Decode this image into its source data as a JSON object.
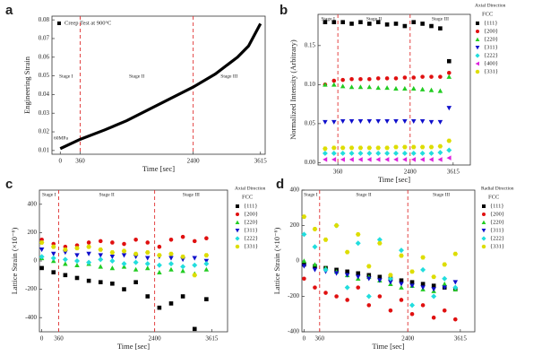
{
  "chart_data": [
    {
      "panel": "a",
      "type": "line",
      "x_label": "Time [sec]",
      "y_label": "Engineering Strain",
      "xlim": [
        -150,
        3700
      ],
      "ylim": [
        0.008,
        0.082
      ],
      "xticks": [
        0,
        360,
        2400,
        3615
      ],
      "yticks": [
        0.01,
        0.02,
        0.03,
        0.04,
        0.05,
        0.06,
        0.07,
        0.08
      ],
      "vlines": [
        360,
        2400
      ],
      "stage_labels": [
        "Stage I",
        "Stage II",
        "Stage III"
      ],
      "stage_label_position": "middle",
      "annotation": "60MPa",
      "legend": "inside",
      "x": [
        0,
        360,
        800,
        1200,
        1600,
        2000,
        2400,
        2800,
        3200,
        3400,
        3615
      ],
      "series": [
        {
          "name": "Creep Test at 900°C",
          "color": "#000000",
          "marker": "square",
          "values": [
            0.011,
            0.016,
            0.021,
            0.026,
            0.032,
            0.038,
            0.044,
            0.051,
            0.06,
            0.066,
            0.078
          ]
        }
      ]
    },
    {
      "panel": "b",
      "type": "scatter",
      "x_label": "Time [sec]",
      "y_label": "Normalized Intensity (Arbitrary)",
      "xlim": [
        -200,
        4100
      ],
      "ylim": [
        -0.003,
        0.19
      ],
      "xticks": [
        360,
        2400,
        3615
      ],
      "yticks": [
        {
          "value": 0,
          "label": "0.00"
        },
        0.05,
        {
          "value": 0.1,
          "label": "0.10"
        },
        0.15
      ],
      "vlines": [
        360,
        2400
      ],
      "stage_labels": [
        "Stage I",
        "Stage II",
        "Stage III"
      ],
      "stage_label_position": "top",
      "legend": "outside",
      "legend_title": "Axial Direction",
      "legend_subtitle": "FCC",
      "x": [
        0,
        250,
        500,
        750,
        1000,
        1250,
        1500,
        1750,
        2000,
        2250,
        2500,
        2750,
        3000,
        3250,
        3500
      ],
      "series": [
        {
          "name": "{111}",
          "color": "#000000",
          "marker": "square",
          "values": [
            0.18,
            0.18,
            0.18,
            0.178,
            0.18,
            0.178,
            0.18,
            0.177,
            0.178,
            0.175,
            0.18,
            0.178,
            0.175,
            0.172,
            0.13
          ]
        },
        {
          "name": "{200}",
          "color": "#e01010",
          "marker": "circle",
          "values": [
            0.1,
            0.105,
            0.106,
            0.107,
            0.107,
            0.107,
            0.108,
            0.108,
            0.108,
            0.109,
            0.109,
            0.11,
            0.11,
            0.11,
            0.115
          ]
        },
        {
          "name": "{220}",
          "color": "#22cc22",
          "marker": "triangle-up",
          "values": [
            0.1,
            0.1,
            0.098,
            0.097,
            0.097,
            0.097,
            0.096,
            0.096,
            0.095,
            0.095,
            0.095,
            0.094,
            0.093,
            0.092,
            0.11
          ]
        },
        {
          "name": "{311}",
          "color": "#1010cc",
          "marker": "triangle-down",
          "values": [
            0.052,
            0.052,
            0.053,
            0.053,
            0.053,
            0.053,
            0.053,
            0.053,
            0.053,
            0.053,
            0.053,
            0.053,
            0.052,
            0.052,
            0.07
          ]
        },
        {
          "name": "{222}",
          "color": "#22dddd",
          "marker": "diamond",
          "values": [
            0.012,
            0.012,
            0.012,
            0.012,
            0.012,
            0.012,
            0.012,
            0.012,
            0.012,
            0.012,
            0.012,
            0.012,
            0.012,
            0.013,
            0.016
          ]
        },
        {
          "name": "{400}",
          "color": "#dd22dd",
          "marker": "triangle-left",
          "values": [
            0.004,
            0.004,
            0.004,
            0.004,
            0.004,
            0.004,
            0.004,
            0.004,
            0.004,
            0.004,
            0.004,
            0.004,
            0.004,
            0.004,
            0.006
          ]
        },
        {
          "name": "{331}",
          "color": "#dddd00",
          "marker": "hexagon",
          "values": [
            0.018,
            0.019,
            0.019,
            0.019,
            0.019,
            0.019,
            0.019,
            0.019,
            0.02,
            0.02,
            0.02,
            0.02,
            0.02,
            0.021,
            0.028
          ]
        }
      ]
    },
    {
      "panel": "c",
      "type": "scatter",
      "x_label": "Time [sec]",
      "y_label": "Lattice Strain (×10⁻⁶)",
      "xlim": [
        -50,
        3950
      ],
      "ylim": [
        -500,
        500
      ],
      "xticks": [
        0,
        360,
        2400,
        3615
      ],
      "yticks": [
        -400,
        -200,
        0,
        200,
        400
      ],
      "vlines": [
        360,
        2400
      ],
      "stage_labels": [
        "Stage I",
        "Stage II",
        "Stage III"
      ],
      "stage_label_position": "top",
      "legend": "outside",
      "legend_title": "Axial Direction",
      "legend_subtitle": "FCC",
      "x": [
        0,
        250,
        500,
        750,
        1000,
        1250,
        1500,
        1750,
        2000,
        2250,
        2500,
        2750,
        3000,
        3250,
        3500
      ],
      "series": [
        {
          "name": "{111}",
          "color": "#000000",
          "marker": "square",
          "values": [
            -50,
            -80,
            -100,
            -120,
            -140,
            -150,
            -160,
            -200,
            -150,
            -250,
            -330,
            -300,
            -250,
            -480,
            -270
          ]
        },
        {
          "name": "{200}",
          "color": "#e01010",
          "marker": "circle",
          "values": [
            150,
            120,
            100,
            110,
            130,
            140,
            130,
            120,
            150,
            130,
            100,
            150,
            170,
            140,
            160
          ]
        },
        {
          "name": "{220}",
          "color": "#22cc22",
          "marker": "triangle-up",
          "values": [
            20,
            0,
            -20,
            -30,
            -20,
            -40,
            -50,
            -40,
            -60,
            -50,
            -80,
            -60,
            -70,
            -90,
            -60
          ]
        },
        {
          "name": "{311}",
          "color": "#1010cc",
          "marker": "triangle-down",
          "values": [
            80,
            50,
            60,
            40,
            50,
            40,
            30,
            40,
            30,
            20,
            30,
            20,
            10,
            20,
            0
          ]
        },
        {
          "name": "{222}",
          "color": "#22dddd",
          "marker": "diamond",
          "values": [
            30,
            20,
            10,
            0,
            -10,
            10,
            0,
            -20,
            -10,
            -20,
            -30,
            -20,
            -40,
            -30,
            -20
          ]
        },
        {
          "name": "{331}",
          "color": "#dddd00",
          "marker": "hexagon",
          "values": [
            130,
            100,
            80,
            90,
            100,
            80,
            60,
            70,
            50,
            60,
            40,
            50,
            30,
            -100,
            40
          ]
        }
      ]
    },
    {
      "panel": "d",
      "type": "scatter",
      "x_label": "Time [sec]",
      "y_label": "Lattice Strain (×10⁻⁶)",
      "xlim": [
        -50,
        3950
      ],
      "ylim": [
        -400,
        400
      ],
      "xticks": [
        0,
        360,
        2400,
        3615
      ],
      "yticks": [
        -400,
        -200,
        0,
        200,
        400
      ],
      "vlines": [
        360,
        2400
      ],
      "stage_labels": [
        "Stage I",
        "Stage II",
        "Stage III"
      ],
      "stage_label_position": "top",
      "legend": "outside",
      "legend_title": "Radial Direction",
      "legend_subtitle": "FCC",
      "x": [
        0,
        250,
        500,
        750,
        1000,
        1250,
        1500,
        1750,
        2000,
        2250,
        2500,
        2750,
        3000,
        3250,
        3500
      ],
      "series": [
        {
          "name": "{111}",
          "color": "#000000",
          "marker": "square",
          "values": [
            -20,
            -30,
            -40,
            -50,
            -60,
            -70,
            -80,
            -90,
            -100,
            -110,
            -120,
            -130,
            -140,
            -150,
            -160
          ]
        },
        {
          "name": "{200}",
          "color": "#e01010",
          "marker": "circle",
          "values": [
            -100,
            -150,
            -180,
            -200,
            -220,
            -150,
            -250,
            -200,
            -280,
            -220,
            -300,
            -250,
            -320,
            -280,
            -330
          ]
        },
        {
          "name": "{220}",
          "color": "#22cc22",
          "marker": "triangle-up",
          "values": [
            0,
            -20,
            -40,
            -60,
            -80,
            -100,
            -90,
            -110,
            -130,
            -150,
            -140,
            -160,
            -170,
            -130,
            -160
          ]
        },
        {
          "name": "{311}",
          "color": "#1010cc",
          "marker": "triangle-down",
          "values": [
            -30,
            -50,
            -60,
            -70,
            -80,
            -90,
            -100,
            -110,
            -120,
            -130,
            -140,
            -150,
            -160,
            -150,
            -120
          ]
        },
        {
          "name": "{222}",
          "color": "#22dddd",
          "marker": "diamond",
          "values": [
            150,
            80,
            -50,
            200,
            -150,
            100,
            -200,
            120,
            -100,
            60,
            -250,
            -50,
            -200,
            -100,
            -150
          ]
        },
        {
          "name": "{331}",
          "color": "#dddd00",
          "marker": "hexagon",
          "values": [
            250,
            180,
            120,
            200,
            50,
            150,
            -30,
            100,
            -80,
            30,
            -60,
            20,
            -90,
            -20,
            40
          ]
        }
      ]
    }
  ]
}
